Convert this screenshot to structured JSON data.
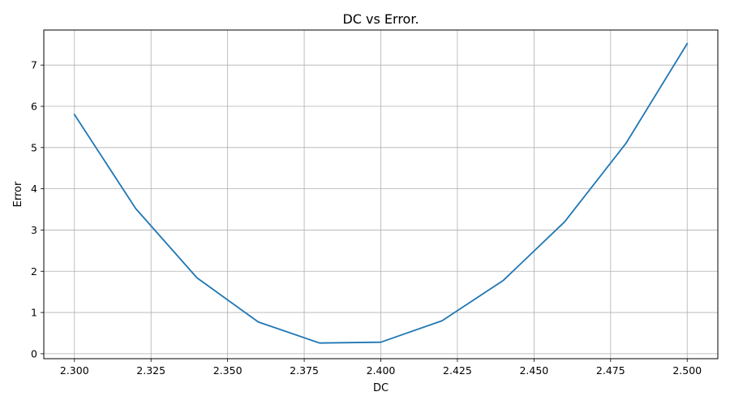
{
  "chart_data": {
    "type": "line",
    "title": "DC vs Error.",
    "xlabel": "DC",
    "ylabel": "Error",
    "xlim": [
      2.29,
      2.51
    ],
    "ylim": [
      -0.12,
      7.85
    ],
    "xticks": [
      2.3,
      2.325,
      2.35,
      2.375,
      2.4,
      2.425,
      2.45,
      2.475,
      2.5
    ],
    "xtick_labels": [
      "2.300",
      "2.325",
      "2.350",
      "2.375",
      "2.400",
      "2.425",
      "2.450",
      "2.475",
      "2.500"
    ],
    "yticks": [
      0,
      1,
      2,
      3,
      4,
      5,
      6,
      7
    ],
    "ytick_labels": [
      "0",
      "1",
      "2",
      "3",
      "4",
      "5",
      "6",
      "7"
    ],
    "grid": true,
    "line_color": "#1f77b4",
    "series": [
      {
        "x": [
          2.3,
          2.32,
          2.34,
          2.36,
          2.38,
          2.4,
          2.42,
          2.44,
          2.46,
          2.48,
          2.5
        ],
        "y": [
          5.8,
          3.52,
          1.84,
          0.77,
          0.26,
          0.28,
          0.8,
          1.78,
          3.2,
          5.1,
          7.52
        ]
      }
    ]
  }
}
